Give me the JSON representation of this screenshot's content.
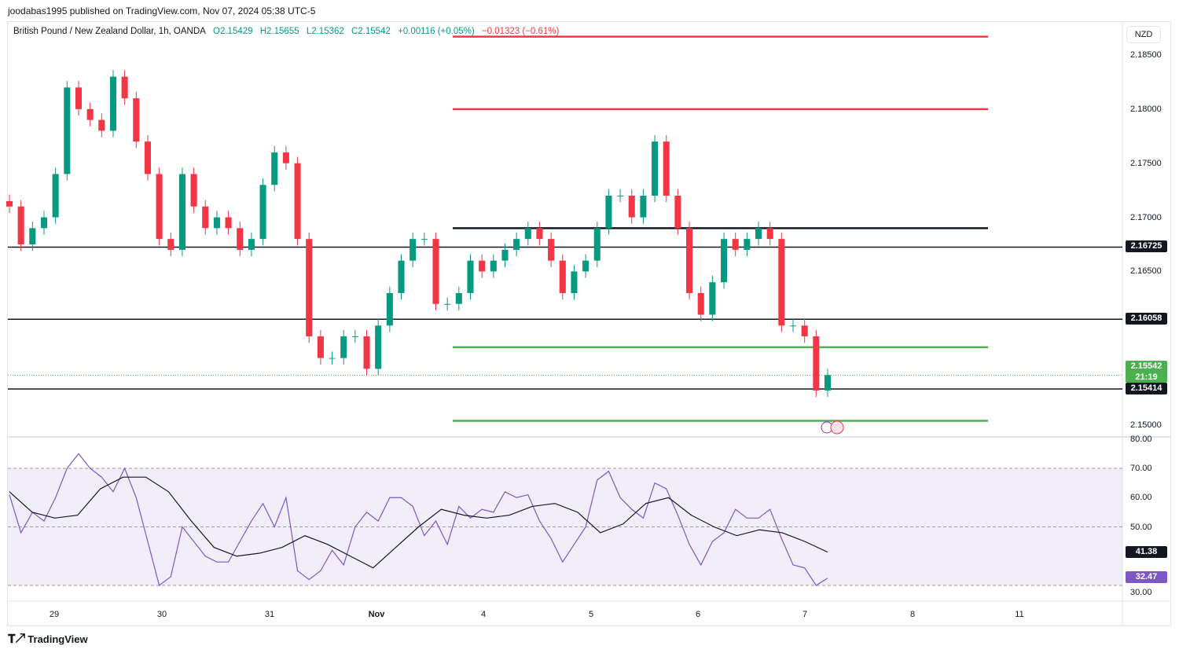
{
  "header": {
    "published": "joodabas1995 published on TradingView.com, Nov 07, 2024 05:38 UTC-5"
  },
  "legend": {
    "symbol": "British Pound / New Zealand Dollar, 1h, OANDA",
    "open": "O2.15429",
    "high": "H2.15655",
    "low": "L2.15362",
    "close": "C2.15542",
    "change": "+0.00116 (+0.05%)",
    "change2": "−0.01323 (−0.61%)"
  },
  "currency": "NZD",
  "footer": {
    "brand": "TradingView"
  },
  "colors": {
    "up": "#089981",
    "down": "#f23645",
    "rsi": "#7e57c2",
    "rsi_ma": "#131722",
    "support": "#4caf50",
    "resistance": "#f23645"
  },
  "chart_data": [
    {
      "type": "candlestick",
      "ylim": [
        2.1497,
        2.1875
      ],
      "y_ticks": [
        "2.18500",
        "2.18000",
        "2.17500",
        "2.17000",
        "2.16500",
        "2.15000"
      ],
      "x_ticks": [
        "29",
        "30",
        "31",
        "Nov",
        "4",
        "5",
        "6",
        "7",
        "8",
        "11"
      ],
      "closes": [
        2.171,
        2.1675,
        2.169,
        2.17,
        2.174,
        2.182,
        2.18,
        2.179,
        2.178,
        2.183,
        2.181,
        2.177,
        2.174,
        2.168,
        2.167,
        2.174,
        2.171,
        2.169,
        2.17,
        2.169,
        2.167,
        2.168,
        2.173,
        2.176,
        2.175,
        2.168,
        2.159,
        2.157,
        2.157,
        2.159,
        2.159,
        2.156,
        2.16,
        2.163,
        2.166,
        2.168,
        2.168,
        2.162,
        2.162,
        2.163,
        2.166,
        2.165,
        2.166,
        2.167,
        2.168,
        2.169,
        2.168,
        2.166,
        2.163,
        2.165,
        2.166,
        2.169,
        2.172,
        2.172,
        2.17,
        2.172,
        2.177,
        2.172,
        2.169,
        2.163,
        2.161,
        2.164,
        2.168,
        2.167,
        2.168,
        2.169,
        2.168,
        2.16,
        2.16,
        2.159,
        2.154,
        2.15542
      ],
      "levels": [
        {
          "price": 2.16725,
          "label": "2.16725",
          "style": "full",
          "color": "#131722"
        },
        {
          "price": 2.16058,
          "label": "2.16058",
          "style": "full",
          "color": "#131722"
        },
        {
          "price": 2.15414,
          "label": "2.15414",
          "style": "full",
          "color": "#131722"
        },
        {
          "price": 2.1867,
          "style": "short",
          "color": "#f23645"
        },
        {
          "price": 2.18,
          "style": "short",
          "color": "#f23645"
        },
        {
          "price": 2.169,
          "style": "short",
          "color": "#131722"
        },
        {
          "price": 2.158,
          "style": "short",
          "color": "#4caf50"
        },
        {
          "price": 2.1512,
          "style": "short",
          "color": "#4caf50"
        }
      ],
      "last_price": {
        "value": "2.15542",
        "countdown": "21:19"
      }
    },
    {
      "type": "line",
      "name": "RSI",
      "ylim": [
        28,
        80
      ],
      "band": [
        30,
        70
      ],
      "y_ticks": [
        "80.00",
        "70.00",
        "60.00",
        "50.00",
        "30.00"
      ],
      "rsi": [
        61,
        48,
        55,
        52,
        60,
        70,
        75,
        70,
        67,
        62,
        70,
        60,
        45,
        30,
        33,
        50,
        45,
        40,
        38,
        38,
        45,
        52,
        58,
        50,
        60,
        35,
        32,
        35,
        42,
        37,
        50,
        55,
        52,
        60,
        60,
        57,
        47,
        52,
        44,
        57,
        53,
        56,
        55,
        62,
        60,
        61,
        52,
        46,
        38,
        44,
        50,
        66,
        69,
        60,
        56,
        53,
        65,
        63,
        54,
        44,
        37,
        45,
        48,
        56,
        53,
        53,
        56,
        46,
        37,
        36,
        30,
        32.47
      ],
      "rsi_ma": [
        62,
        55,
        53,
        54,
        63,
        67,
        67,
        62,
        52,
        43,
        40,
        41,
        43,
        47,
        44,
        40,
        36,
        43,
        50,
        56,
        54,
        53,
        54,
        57,
        58,
        55,
        48,
        51,
        58,
        60,
        54,
        50,
        47,
        49,
        48,
        45,
        41.38
      ],
      "last_rsi": "32.47",
      "last_ma": "41.38"
    }
  ]
}
